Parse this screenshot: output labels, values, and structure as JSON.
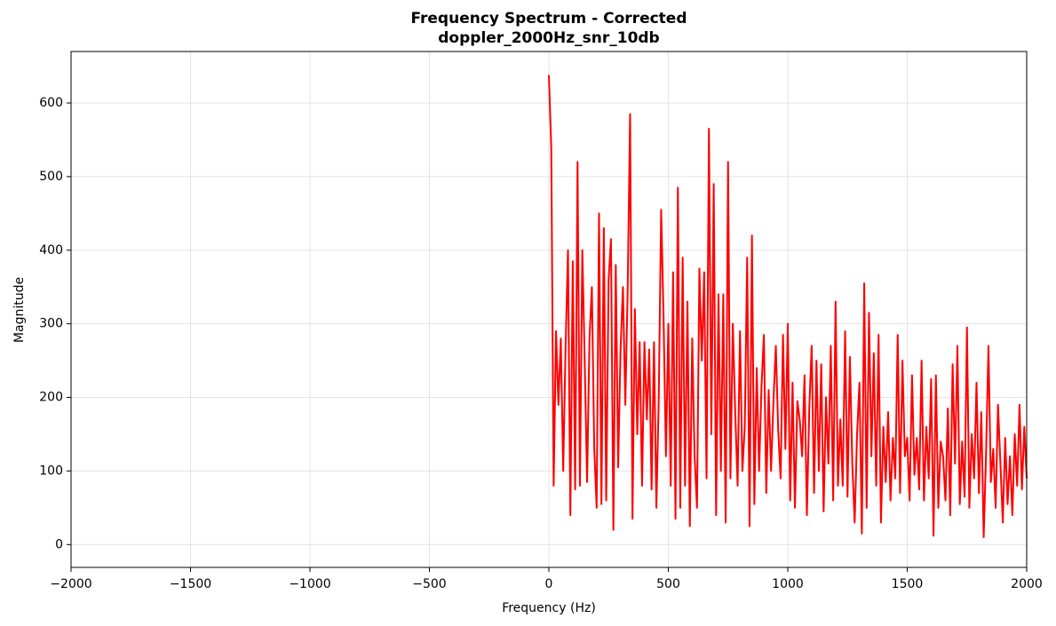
{
  "chart_data": {
    "type": "line",
    "title": "Frequency Spectrum - Corrected",
    "subtitle": "doppler_2000Hz_snr_10db",
    "x_label": "Frequency (Hz)",
    "y_label": "Magnitude",
    "color": "#ff0000",
    "grid": true,
    "xlim": [
      -2000,
      2000
    ],
    "ylim": [
      -31,
      670
    ],
    "xticks": [
      {
        "value": -2000,
        "label": "−2000"
      },
      {
        "value": -1500,
        "label": "−1500"
      },
      {
        "value": -1000,
        "label": "−1000"
      },
      {
        "value": -500,
        "label": "−500"
      },
      0,
      500,
      1000,
      1500,
      2000
    ],
    "yticks": [
      0,
      100,
      200,
      300,
      400,
      500,
      600
    ],
    "x": [
      0,
      10,
      20,
      30,
      40,
      50,
      60,
      70,
      80,
      90,
      100,
      110,
      120,
      130,
      140,
      150,
      160,
      170,
      180,
      190,
      200,
      210,
      220,
      230,
      240,
      250,
      260,
      270,
      280,
      290,
      300,
      310,
      320,
      330,
      340,
      350,
      360,
      370,
      380,
      390,
      400,
      410,
      420,
      430,
      440,
      450,
      460,
      470,
      480,
      490,
      500,
      510,
      520,
      530,
      540,
      550,
      560,
      570,
      580,
      590,
      600,
      610,
      620,
      630,
      640,
      650,
      660,
      670,
      680,
      690,
      700,
      710,
      720,
      730,
      740,
      750,
      760,
      770,
      780,
      790,
      800,
      810,
      820,
      830,
      840,
      850,
      860,
      870,
      880,
      890,
      900,
      910,
      920,
      930,
      940,
      950,
      960,
      970,
      980,
      990,
      1000,
      1010,
      1020,
      1030,
      1040,
      1050,
      1060,
      1070,
      1080,
      1090,
      1100,
      1110,
      1120,
      1130,
      1140,
      1150,
      1160,
      1170,
      1180,
      1190,
      1200,
      1210,
      1220,
      1230,
      1240,
      1250,
      1260,
      1270,
      1280,
      1290,
      1300,
      1310,
      1320,
      1330,
      1340,
      1350,
      1360,
      1370,
      1380,
      1390,
      1400,
      1410,
      1420,
      1430,
      1440,
      1450,
      1460,
      1470,
      1480,
      1490,
      1500,
      1510,
      1520,
      1530,
      1540,
      1550,
      1560,
      1570,
      1580,
      1590,
      1600,
      1610,
      1620,
      1630,
      1640,
      1650,
      1660,
      1670,
      1680,
      1690,
      1700,
      1710,
      1720,
      1730,
      1740,
      1750,
      1760,
      1770,
      1780,
      1790,
      1800,
      1810,
      1820,
      1830,
      1840,
      1850,
      1860,
      1870,
      1880,
      1890,
      1900,
      1910,
      1920,
      1930,
      1940,
      1950,
      1960,
      1970,
      1980,
      1990,
      2000
    ],
    "values": [
      638,
      540,
      80,
      290,
      190,
      280,
      100,
      270,
      400,
      40,
      385,
      75,
      520,
      80,
      400,
      250,
      85,
      280,
      350,
      130,
      50,
      450,
      55,
      430,
      60,
      360,
      415,
      20,
      380,
      105,
      265,
      350,
      190,
      350,
      585,
      35,
      320,
      150,
      275,
      80,
      275,
      170,
      265,
      75,
      275,
      50,
      200,
      455,
      310,
      120,
      300,
      80,
      370,
      35,
      485,
      50,
      390,
      80,
      330,
      25,
      280,
      120,
      50,
      375,
      250,
      370,
      90,
      565,
      150,
      490,
      40,
      340,
      100,
      340,
      30,
      520,
      90,
      300,
      180,
      80,
      290,
      100,
      160,
      390,
      25,
      420,
      55,
      240,
      100,
      215,
      285,
      70,
      210,
      100,
      195,
      270,
      155,
      90,
      285,
      130,
      300,
      60,
      220,
      50,
      195,
      170,
      120,
      230,
      40,
      185,
      270,
      70,
      250,
      100,
      245,
      45,
      200,
      110,
      270,
      60,
      330,
      80,
      170,
      80,
      290,
      65,
      255,
      110,
      30,
      150,
      220,
      15,
      355,
      50,
      315,
      120,
      260,
      80,
      285,
      30,
      160,
      85,
      180,
      60,
      145,
      90,
      285,
      70,
      250,
      120,
      145,
      60,
      230,
      95,
      145,
      75,
      250,
      60,
      160,
      90,
      225,
      12,
      230,
      50,
      140,
      120,
      60,
      185,
      40,
      245,
      110,
      270,
      55,
      140,
      65,
      295,
      50,
      150,
      90,
      220,
      70,
      180,
      10,
      125,
      270,
      85,
      130,
      50,
      190,
      110,
      30,
      145,
      55,
      120,
      40,
      150,
      80,
      190,
      75,
      160,
      90
    ]
  }
}
